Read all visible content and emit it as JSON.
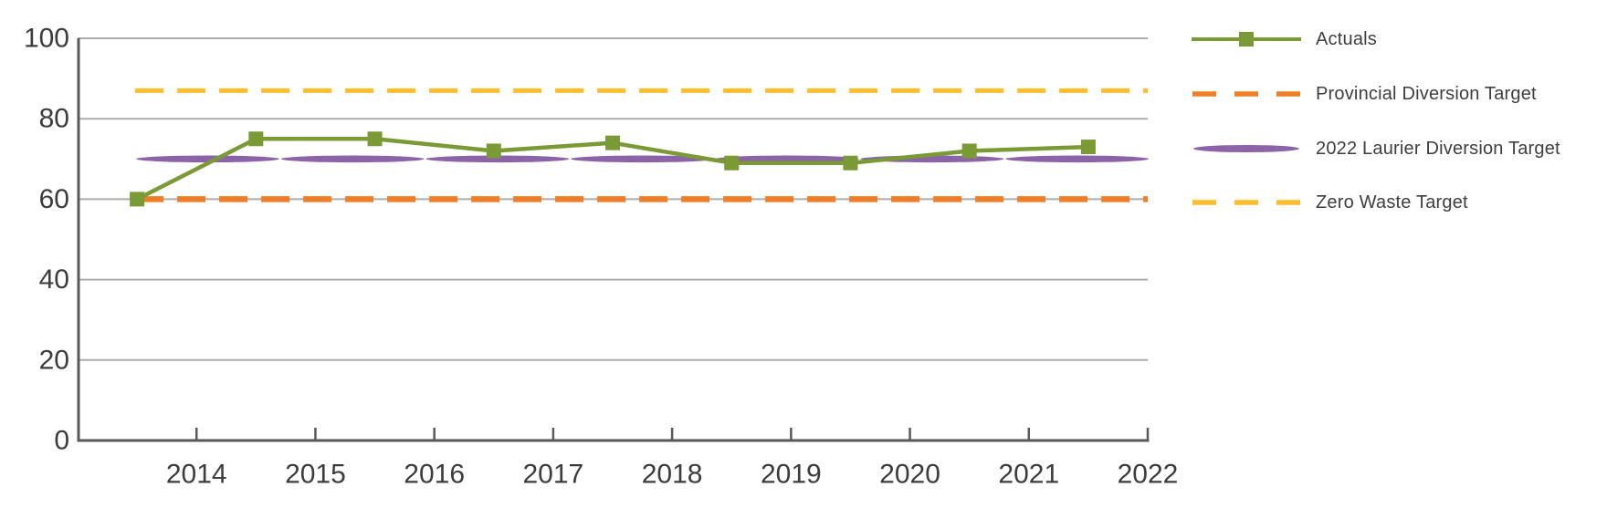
{
  "figure": {
    "background": "#ffffff",
    "description": "Waste diversion rate line chart with actuals and three horizontal target lines"
  },
  "axis": {
    "line_color": "#595959",
    "grid_color": "#acacac",
    "label_color": "#3c3c3c"
  },
  "chart_data": {
    "type": "line",
    "title": "",
    "xlabel": "",
    "ylabel": "",
    "x_tick_labels": [
      "2014",
      "2015",
      "2016",
      "2017",
      "2018",
      "2019",
      "2020",
      "2021",
      "2022"
    ],
    "y_ticks": [
      0,
      20,
      40,
      60,
      80,
      100
    ],
    "ylim": [
      0,
      100
    ],
    "grid": "horizontal",
    "legend_position": "right",
    "points_at_band_midpoints": true,
    "series": [
      {
        "name": "Actuals",
        "type": "line-markers",
        "marker": "square",
        "color": "#7a9a35",
        "values": [
          60,
          75,
          75,
          72,
          74,
          69,
          69,
          72,
          73
        ]
      },
      {
        "name": "Provincial Diversion Target",
        "type": "dashed",
        "color": "#f07e26",
        "value": 60
      },
      {
        "name": "2022 Laurier Diversion Target",
        "type": "tapered-line",
        "color": "#8c63a8",
        "value": 70
      },
      {
        "name": "Zero Waste Target",
        "type": "dashed",
        "color": "#ffbe29",
        "value": 87
      }
    ]
  }
}
